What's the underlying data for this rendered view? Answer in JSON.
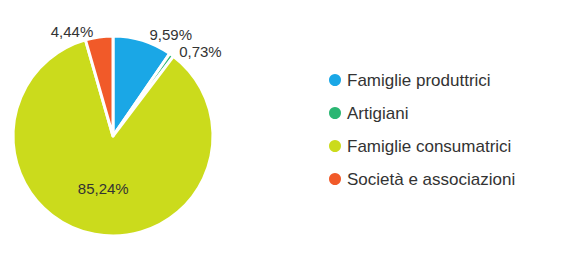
{
  "chart_data": {
    "type": "pie",
    "categories": [
      "Famiglie produttrici",
      "Artigiani",
      "Famiglie consumatrici",
      "Società e associazioni"
    ],
    "values": [
      9.59,
      0.73,
      85.24,
      4.44
    ],
    "value_labels": [
      "9,59%",
      "0,73%",
      "85,24%",
      "4,44%"
    ],
    "colors": [
      "#1aa7e6",
      "#2bb673",
      "#cbdb1c",
      "#f15a29"
    ],
    "data_labels": true,
    "legend": "right"
  }
}
